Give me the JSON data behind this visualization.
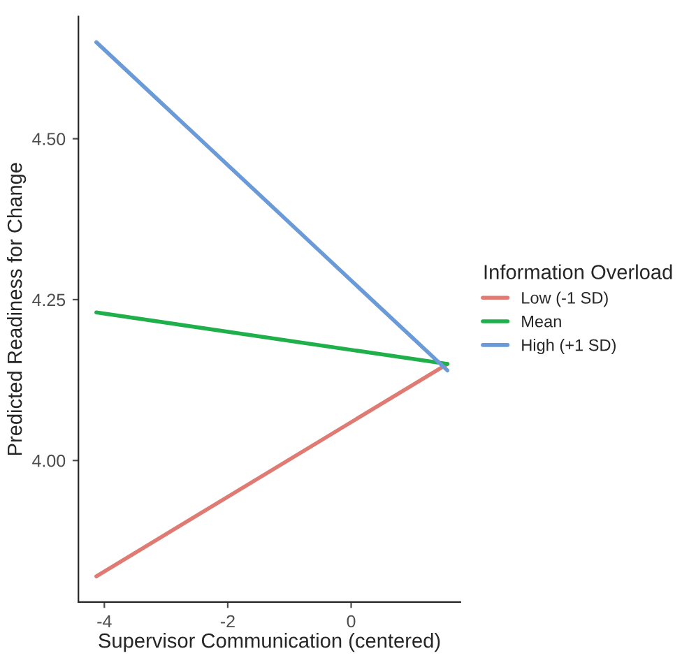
{
  "chart_data": {
    "type": "line",
    "xlabel": "Supervisor Communication (centered)",
    "ylabel": "Predicted Readiness for Change",
    "legend_title": "Information Overload",
    "x": [
      -4.13,
      1.56
    ],
    "series": [
      {
        "name": "Low (-1 SD)",
        "color": "#e07b74",
        "values": [
          3.82,
          4.15
        ]
      },
      {
        "name": "Mean",
        "color": "#1fb04b",
        "values": [
          4.23,
          4.15
        ]
      },
      {
        "name": "High (+1 SD)",
        "color": "#6a9bd8",
        "values": [
          4.65,
          4.14
        ]
      }
    ],
    "xlim": [
      -4.42,
      1.77
    ],
    "xticks": [
      {
        "value": -4,
        "label": "-4"
      },
      {
        "value": -2,
        "label": "-2"
      },
      0
    ],
    "ylim": [
      3.78,
      4.69
    ],
    "yticks": [
      {
        "value": 4.0,
        "label": "4.00"
      },
      {
        "value": 4.25,
        "label": "4.25"
      },
      {
        "value": 4.5,
        "label": "4.50"
      }
    ],
    "grid": false,
    "legend": "right",
    "marker": "none",
    "line_style": "solid"
  }
}
